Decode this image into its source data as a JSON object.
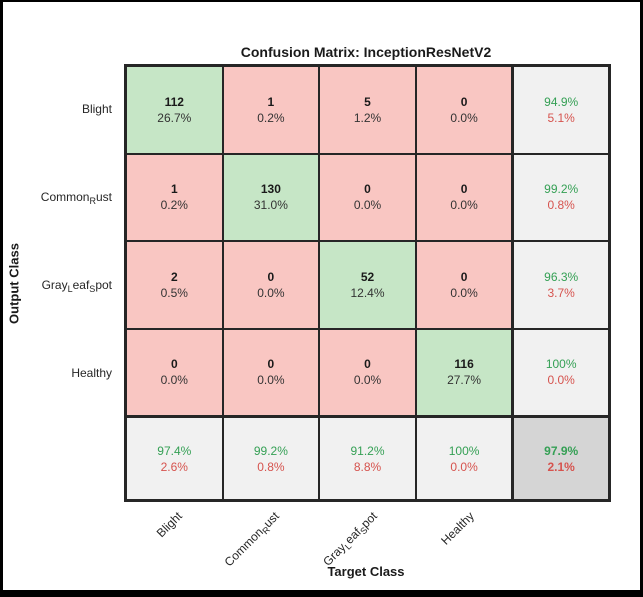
{
  "title": "Confusion Matrix: InceptionResNetV2",
  "axes": {
    "x_label": "Target Class",
    "y_label": "Output Class"
  },
  "colors": {
    "diagonal_cell": "#c6e6c6",
    "off_diagonal_cell": "#f9c6c2",
    "summary_cell": "#f1f1f1",
    "corner_cell": "#d5d5d5",
    "green_text": "#35a055",
    "red_text": "#d6534e",
    "grid_line": "#262626"
  },
  "class_label_parts": [
    [
      [
        "Blight",
        0
      ]
    ],
    [
      [
        "Common",
        0
      ],
      [
        "R",
        1
      ],
      [
        "ust",
        0
      ]
    ],
    [
      [
        "Gray",
        0
      ],
      [
        "L",
        1
      ],
      [
        "eaf",
        0
      ],
      [
        "S",
        1
      ],
      [
        "pot",
        0
      ]
    ],
    [
      [
        "Healthy",
        0
      ]
    ]
  ],
  "grid": [
    [
      {
        "a": "112",
        "b": "26.7%"
      },
      {
        "a": "1",
        "b": "0.2%"
      },
      {
        "a": "5",
        "b": "1.2%"
      },
      {
        "a": "0",
        "b": "0.0%"
      },
      {
        "a": "94.9%",
        "b": "5.1%"
      }
    ],
    [
      {
        "a": "1",
        "b": "0.2%"
      },
      {
        "a": "130",
        "b": "31.0%"
      },
      {
        "a": "0",
        "b": "0.0%"
      },
      {
        "a": "0",
        "b": "0.0%"
      },
      {
        "a": "99.2%",
        "b": "0.8%"
      }
    ],
    [
      {
        "a": "2",
        "b": "0.5%"
      },
      {
        "a": "0",
        "b": "0.0%"
      },
      {
        "a": "52",
        "b": "12.4%"
      },
      {
        "a": "0",
        "b": "0.0%"
      },
      {
        "a": "96.3%",
        "b": "3.7%"
      }
    ],
    [
      {
        "a": "0",
        "b": "0.0%"
      },
      {
        "a": "0",
        "b": "0.0%"
      },
      {
        "a": "0",
        "b": "0.0%"
      },
      {
        "a": "116",
        "b": "27.7%"
      },
      {
        "a": "100%",
        "b": "0.0%"
      }
    ],
    [
      {
        "a": "97.4%",
        "b": "2.6%"
      },
      {
        "a": "99.2%",
        "b": "0.8%"
      },
      {
        "a": "91.2%",
        "b": "8.8%"
      },
      {
        "a": "100%",
        "b": "0.0%"
      },
      {
        "a": "97.9%",
        "b": "2.1%"
      }
    ]
  ],
  "chart_data": {
    "type": "heatmap",
    "subtype": "confusion-matrix",
    "title": "Confusion Matrix: InceptionResNetV2",
    "xlabel": "Target Class",
    "ylabel": "Output Class",
    "categories": [
      "Blight",
      "Common_Rust",
      "Gray_Leaf_Spot",
      "Healthy"
    ],
    "matrix_counts": [
      [
        112,
        1,
        5,
        0
      ],
      [
        1,
        130,
        0,
        0
      ],
      [
        2,
        0,
        52,
        0
      ],
      [
        0,
        0,
        0,
        116
      ]
    ],
    "matrix_percent_of_total": [
      [
        26.7,
        0.2,
        1.2,
        0.0
      ],
      [
        0.2,
        31.0,
        0.0,
        0.0
      ],
      [
        0.5,
        0.0,
        12.4,
        0.0
      ],
      [
        0.0,
        0.0,
        0.0,
        27.7
      ]
    ],
    "row_summary_green_red": [
      [
        "94.9%",
        "5.1%"
      ],
      [
        "99.2%",
        "0.8%"
      ],
      [
        "96.3%",
        "3.7%"
      ],
      [
        "100%",
        "0.0%"
      ]
    ],
    "column_summary_green_red": [
      [
        "97.4%",
        "2.6%"
      ],
      [
        "99.2%",
        "0.8%"
      ],
      [
        "91.2%",
        "8.8%"
      ],
      [
        "100%",
        "0.0%"
      ]
    ],
    "overall_accuracy_green_red": [
      "97.9%",
      "2.1%"
    ],
    "legend_position": "none",
    "grid": "on"
  }
}
